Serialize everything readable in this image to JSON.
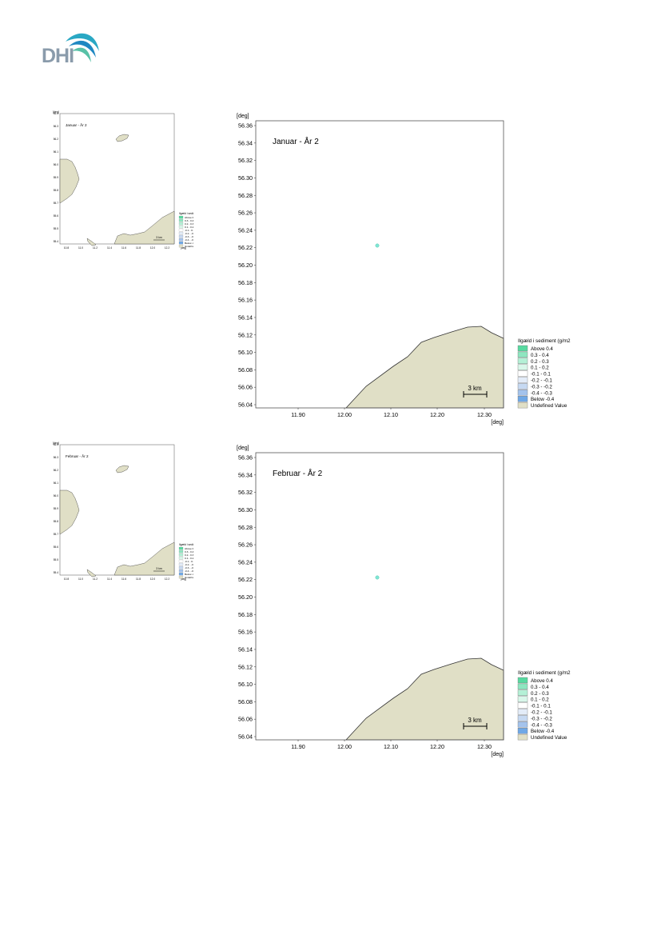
{
  "logo": {
    "text": "DHI"
  },
  "colors": {
    "land": "#e0dfc6",
    "land_edge": "#333333",
    "legend_above": "#57d9a0",
    "legend_below": "#6fa8e6",
    "point": "#7fe6d4"
  },
  "legend": {
    "title": "Ilgæld i sediment (g/m2",
    "items": [
      {
        "label": "Above  0.4",
        "color": "#57d9a0"
      },
      {
        "label": "0.3 -  0.4",
        "color": "#8ee6c0"
      },
      {
        "label": "0.2 -  0.3",
        "color": "#b4f0d6"
      },
      {
        "label": "0.1 -  0.2",
        "color": "#d9f7ea"
      },
      {
        "label": "-0.1 -  0.1",
        "color": "#ffffff"
      },
      {
        "label": "-0.2 - -0.1",
        "color": "#e3ecf8"
      },
      {
        "label": "-0.3 - -0.2",
        "color": "#c6d9f2"
      },
      {
        "label": "-0.4 - -0.3",
        "color": "#a4c3ec"
      },
      {
        "label": "Below -0.4",
        "color": "#6fa8e6"
      },
      {
        "label": "Undefined Value",
        "color": "#e0dfc6"
      }
    ]
  },
  "axis": {
    "unit": "[deg]",
    "y_ticks": [
      "56.36",
      "56.34",
      "56.32",
      "56.30",
      "56.28",
      "56.26",
      "56.24",
      "56.22",
      "56.20",
      "56.18",
      "56.16",
      "56.14",
      "56.12",
      "56.10",
      "56.08",
      "56.06",
      "56.04"
    ],
    "x_ticks": [
      "11.90",
      "12.00",
      "12.10",
      "12.20",
      "12.30"
    ],
    "scale_bar": "3 km"
  },
  "maps": [
    {
      "title": "Januar - År 2",
      "small_title": "Januar - År 2"
    },
    {
      "title": "Februar - År 2",
      "small_title": "Februar - År 2"
    }
  ]
}
